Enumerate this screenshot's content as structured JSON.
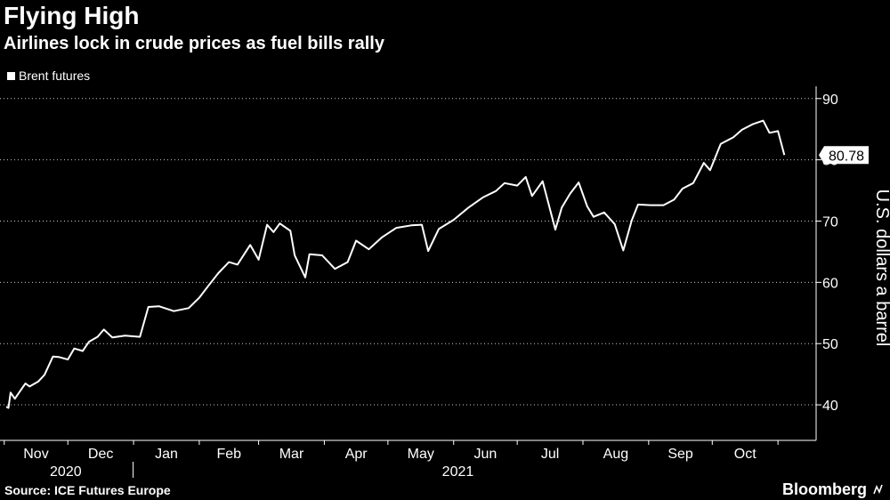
{
  "title": "Flying High",
  "subtitle": "Airlines lock in crude prices as fuel bills rally",
  "source": "Source: ICE Futures Europe",
  "brand": "Bloomberg",
  "colors": {
    "background": "#000000",
    "line": "#ffffff",
    "grid": "#ffffff",
    "text": "#ffffff"
  },
  "chart_data": {
    "type": "line",
    "series": [
      {
        "name": "Brent futures",
        "x": [
          "2020-11-02",
          "2020-11-03",
          "2020-11-04",
          "2020-11-06",
          "2020-11-09",
          "2020-11-11",
          "2020-11-13",
          "2020-11-17",
          "2020-11-20",
          "2020-11-24",
          "2020-11-27",
          "2020-12-01",
          "2020-12-04",
          "2020-12-08",
          "2020-12-11",
          "2020-12-15",
          "2020-12-18",
          "2020-12-22",
          "2020-12-28",
          "2021-01-04",
          "2021-01-08",
          "2021-01-13",
          "2021-01-20",
          "2021-01-27",
          "2021-02-01",
          "2021-02-05",
          "2021-02-10",
          "2021-02-15",
          "2021-02-19",
          "2021-02-25",
          "2021-03-01",
          "2021-03-05",
          "2021-03-08",
          "2021-03-11",
          "2021-03-16",
          "2021-03-18",
          "2021-03-23",
          "2021-03-25",
          "2021-03-31",
          "2021-04-06",
          "2021-04-12",
          "2021-04-16",
          "2021-04-22",
          "2021-04-28",
          "2021-05-05",
          "2021-05-12",
          "2021-05-17",
          "2021-05-20",
          "2021-05-25",
          "2021-06-01",
          "2021-06-08",
          "2021-06-15",
          "2021-06-21",
          "2021-06-25",
          "2021-07-01",
          "2021-07-05",
          "2021-07-08",
          "2021-07-13",
          "2021-07-19",
          "2021-07-22",
          "2021-07-26",
          "2021-07-30",
          "2021-08-03",
          "2021-08-06",
          "2021-08-11",
          "2021-08-16",
          "2021-08-20",
          "2021-08-24",
          "2021-08-27",
          "2021-09-02",
          "2021-09-08",
          "2021-09-13",
          "2021-09-17",
          "2021-09-22",
          "2021-09-27",
          "2021-09-30",
          "2021-10-05",
          "2021-10-11",
          "2021-10-15",
          "2021-10-20",
          "2021-10-25",
          "2021-10-28",
          "2021-11-01",
          "2021-11-04"
        ],
        "values": [
          39.7,
          39.5,
          42.0,
          41.0,
          42.5,
          43.5,
          43.0,
          43.8,
          44.9,
          47.9,
          47.8,
          47.4,
          49.2,
          48.8,
          50.3,
          51.1,
          52.3,
          51.0,
          51.3,
          51.1,
          55.99,
          56.1,
          55.3,
          55.8,
          57.5,
          59.3,
          61.5,
          63.3,
          62.9,
          66.1,
          63.7,
          69.4,
          68.2,
          69.6,
          68.4,
          64.4,
          60.8,
          64.6,
          64.4,
          62.2,
          63.3,
          66.8,
          65.4,
          67.3,
          68.9,
          69.3,
          69.4,
          65.1,
          68.7,
          70.2,
          72.2,
          73.9,
          74.9,
          76.2,
          75.8,
          77.2,
          74.1,
          76.5,
          68.6,
          72.2,
          74.5,
          76.3,
          72.4,
          70.7,
          71.4,
          69.5,
          65.2,
          70.1,
          72.7,
          72.6,
          72.6,
          73.5,
          75.3,
          76.2,
          79.5,
          78.3,
          82.6,
          83.7,
          84.9,
          85.8,
          86.4,
          84.4,
          84.7,
          80.78
        ]
      }
    ],
    "x_ticks": [
      "Nov",
      "Dec",
      "Jan",
      "Feb",
      "Mar",
      "Apr",
      "May",
      "Jun",
      "Jul",
      "Aug",
      "Sep",
      "Oct"
    ],
    "x_years": [
      "2020",
      "2021"
    ],
    "y_ticks": [
      40,
      50,
      60,
      70,
      80,
      90
    ],
    "ylim": [
      34.2,
      92
    ],
    "xlim": [
      "2020-10-30",
      "2021-11-19"
    ],
    "ylabel": "U.S. dollars a barrel",
    "last_value": "80.78",
    "grid": "horizontal dotted",
    "legend": "top-left"
  }
}
